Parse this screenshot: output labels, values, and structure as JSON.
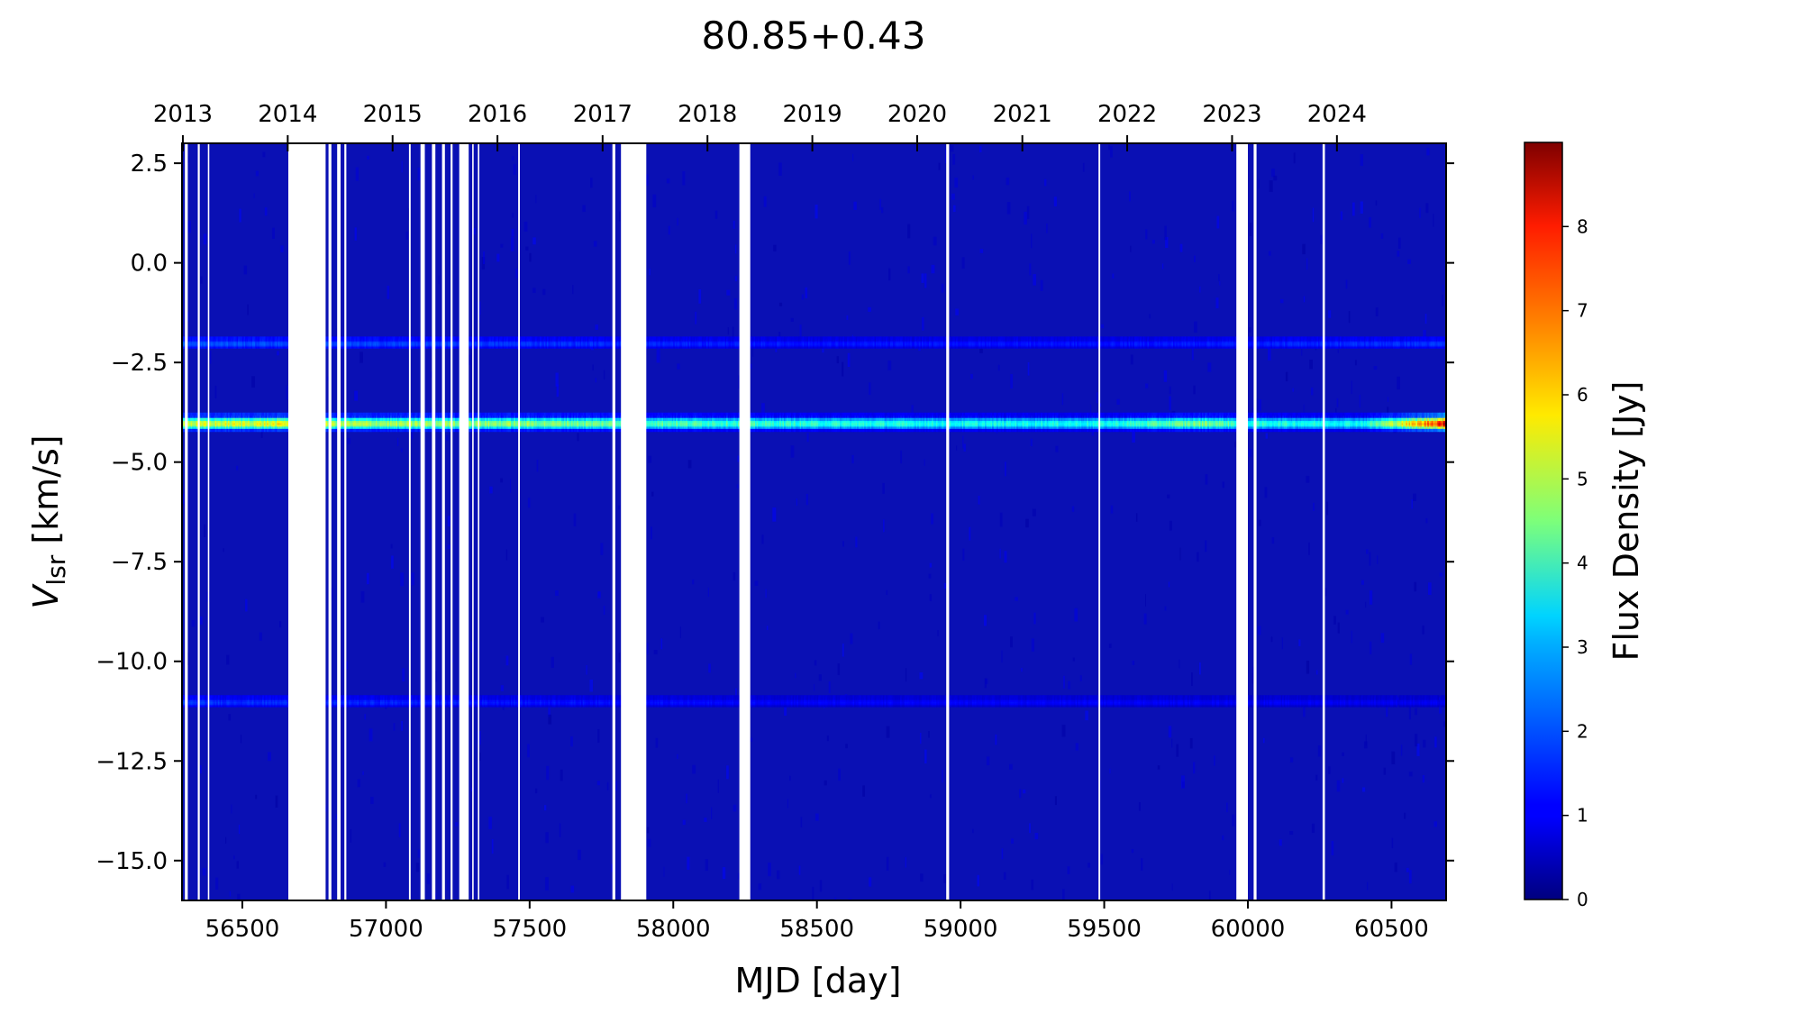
{
  "chart_data": {
    "type": "heatmap",
    "title": "80.85+0.43",
    "xlabel": "MJD [day]",
    "ylabel_main": "V",
    "ylabel_sub": "lsr",
    "ylabel_unit": " [km/s]",
    "colorbar_label": "Flux Density [Jy]",
    "colormap": "jet",
    "xlim": [
      56290,
      60690
    ],
    "ylim": [
      -16.0,
      3.0
    ],
    "clim": [
      0,
      9
    ],
    "x_ticks": [
      56500,
      57000,
      57500,
      58000,
      58500,
      59000,
      59500,
      60000,
      60500
    ],
    "x_tick_labels": [
      "56500",
      "57000",
      "57500",
      "58000",
      "58500",
      "59000",
      "59500",
      "60000",
      "60500"
    ],
    "y_ticks": [
      2.5,
      0.0,
      -2.5,
      -5.0,
      -7.5,
      -10.0,
      -12.5,
      -15.0
    ],
    "y_tick_labels": [
      "2.5",
      "0.0",
      "−2.5",
      "−5.0",
      "−7.5",
      "−10.0",
      "−12.5",
      "−15.0"
    ],
    "top_axis_years": [
      {
        "label": "2013",
        "mjd": 56293
      },
      {
        "label": "2014",
        "mjd": 56658
      },
      {
        "label": "2015",
        "mjd": 57023
      },
      {
        "label": "2016",
        "mjd": 57388
      },
      {
        "label": "2017",
        "mjd": 57754
      },
      {
        "label": "2018",
        "mjd": 58119
      },
      {
        "label": "2019",
        "mjd": 58484
      },
      {
        "label": "2020",
        "mjd": 58849
      },
      {
        "label": "2021",
        "mjd": 59215
      },
      {
        "label": "2022",
        "mjd": 59580
      },
      {
        "label": "2023",
        "mjd": 59945
      },
      {
        "label": "2024",
        "mjd": 60310
      }
    ],
    "colorbar_ticks": [
      0,
      1,
      2,
      3,
      4,
      5,
      6,
      7,
      8
    ],
    "colorbar_tick_labels": [
      "0",
      "1",
      "2",
      "3",
      "4",
      "5",
      "6",
      "7",
      "8"
    ],
    "background_level": 0.3,
    "features": [
      {
        "name": "main-feature",
        "velocity": -4.0,
        "width": 0.22,
        "peak_values": [
          [
            56290,
            5.2
          ],
          [
            56660,
            5.6
          ],
          [
            56800,
            5.0
          ],
          [
            57300,
            4.8
          ],
          [
            57600,
            4.6
          ],
          [
            58000,
            4.2
          ],
          [
            58500,
            3.8
          ],
          [
            59000,
            3.6
          ],
          [
            59500,
            3.6
          ],
          [
            59850,
            4.6
          ],
          [
            60000,
            3.8
          ],
          [
            60400,
            3.6
          ],
          [
            60600,
            6.5
          ],
          [
            60690,
            8.6
          ]
        ]
      },
      {
        "name": "secondary-feature",
        "velocity": -2.0,
        "width": 0.2,
        "peak_values": [
          [
            56290,
            1.9
          ],
          [
            56700,
            1.8
          ],
          [
            57500,
            1.6
          ],
          [
            58500,
            1.3
          ],
          [
            59500,
            1.3
          ],
          [
            60690,
            1.6
          ]
        ]
      },
      {
        "name": "weak-feature",
        "velocity": -11.0,
        "width": 0.2,
        "peak_values": [
          [
            56290,
            1.6
          ],
          [
            56700,
            1.5
          ],
          [
            57500,
            1.3
          ],
          [
            58500,
            1.1
          ],
          [
            59500,
            1.1
          ],
          [
            60690,
            1.0
          ]
        ]
      }
    ],
    "data_gaps": [
      [
        56300,
        56310
      ],
      [
        56345,
        56352
      ],
      [
        56380,
        56385
      ],
      [
        56660,
        56668
      ],
      [
        56668,
        56790
      ],
      [
        56800,
        56810
      ],
      [
        56830,
        56842
      ],
      [
        56855,
        56862
      ],
      [
        57080,
        57086
      ],
      [
        57120,
        57135
      ],
      [
        57160,
        57172
      ],
      [
        57195,
        57205
      ],
      [
        57225,
        57232
      ],
      [
        57255,
        57288
      ],
      [
        57300,
        57305
      ],
      [
        57320,
        57325
      ],
      [
        57460,
        57466
      ],
      [
        57788,
        57798
      ],
      [
        57818,
        57906
      ],
      [
        58230,
        58268
      ],
      [
        58950,
        58960
      ],
      [
        59480,
        59486
      ],
      [
        59960,
        60000
      ],
      [
        60020,
        60030
      ],
      [
        60260,
        60268
      ]
    ]
  }
}
